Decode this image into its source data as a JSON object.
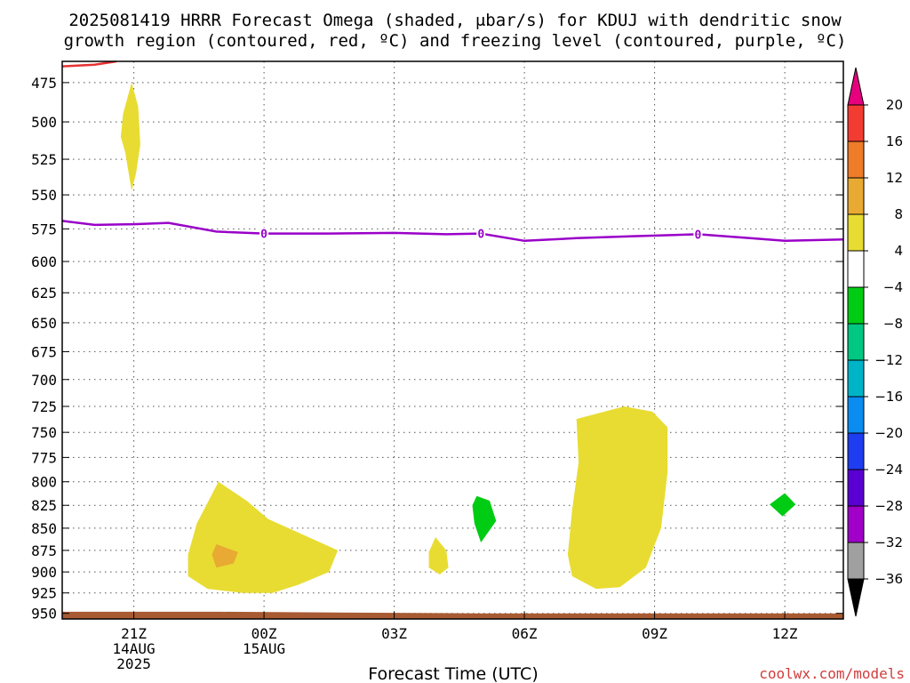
{
  "title_line1": "2025081419 HRRR Forecast Omega (shaded, μbar/s) for KDUJ with dendritic snow",
  "title_line2": "growth region (contoured, red, ºC) and freezing level (contoured, purple, ºC)",
  "credit": "coolwx.com/models",
  "chart_data": {
    "type": "contour",
    "xlabel": "Forecast Time (UTC)",
    "ylabel": "",
    "x_range_hours_from_21Z": [
      -1.65,
      16.35
    ],
    "y_range_hPa": [
      462,
      957
    ],
    "y_scale": "log-pressure, inverted",
    "grid": true,
    "x_ticks": [
      {
        "hour": 0,
        "lines": [
          "21Z",
          "14AUG",
          "2025"
        ]
      },
      {
        "hour": 3,
        "lines": [
          "00Z",
          "15AUG"
        ]
      },
      {
        "hour": 6,
        "lines": [
          "03Z"
        ]
      },
      {
        "hour": 9,
        "lines": [
          "06Z"
        ]
      },
      {
        "hour": 12,
        "lines": [
          "09Z"
        ]
      },
      {
        "hour": 15,
        "lines": [
          "12Z"
        ]
      }
    ],
    "y_ticks": [
      475,
      500,
      525,
      550,
      575,
      600,
      625,
      650,
      675,
      700,
      725,
      750,
      775,
      800,
      825,
      850,
      875,
      900,
      925,
      950
    ],
    "freezing_level": {
      "label": "0",
      "label_hours": [
        3,
        8,
        13
      ],
      "points": [
        [
          -1.65,
          569
        ],
        [
          -0.9,
          572
        ],
        [
          0,
          571.5
        ],
        [
          0.8,
          570.5
        ],
        [
          1.9,
          577
        ],
        [
          3,
          578.5
        ],
        [
          4.5,
          578.5
        ],
        [
          6,
          578
        ],
        [
          7.2,
          579
        ],
        [
          8,
          578.5
        ],
        [
          9,
          584
        ],
        [
          10.2,
          582
        ],
        [
          11.5,
          580.5
        ],
        [
          13,
          579
        ],
        [
          14.2,
          582
        ],
        [
          15,
          584
        ],
        [
          16.35,
          583
        ]
      ]
    },
    "dendritic_zone": {
      "points": [
        [
          -1.65,
          465
        ],
        [
          -0.9,
          464
        ],
        [
          -0.4,
          462
        ]
      ]
    },
    "terrain_top_hPa": [
      [
        -1.65,
        948
      ],
      [
        2,
        948
      ],
      [
        8,
        950
      ],
      [
        16.35,
        950
      ]
    ],
    "colorbar": {
      "tick_values": [
        20,
        16,
        12,
        8,
        4,
        -4,
        -8,
        -12,
        -16,
        -20,
        -24,
        -28,
        -32,
        -36
      ],
      "colors": {
        "over": "#e6007e",
        "16_20": "#f23c32",
        "12_16": "#ee7c28",
        "8_12": "#e8aa32",
        "4_8": "#e8dc32",
        "neutral": "#ffffff",
        "m8_m4": "#00cc14",
        "m12_m8": "#00c882",
        "m16_m12": "#00b4c8",
        "m20_m16": "#0a8cf0",
        "m24_m20": "#1e3cf0",
        "m28_m24": "#5a00d2",
        "m32_m28": "#a000c8",
        "m36_m32": "#a0a0a0",
        "under": "#000000"
      }
    },
    "omega_regions": [
      {
        "range": "4 to 8",
        "color": "#e8dc32",
        "points": [
          [
            -0.05,
            475
          ],
          [
            0.1,
            490
          ],
          [
            0.15,
            515
          ],
          [
            0.05,
            535
          ],
          [
            -0.05,
            547
          ],
          [
            -0.2,
            520
          ],
          [
            -0.3,
            510
          ],
          [
            -0.25,
            495
          ]
        ]
      },
      {
        "range": "4 to 8",
        "color": "#e8dc32",
        "points": [
          [
            1.95,
            800
          ],
          [
            2.6,
            820
          ],
          [
            3.1,
            840
          ],
          [
            3.8,
            855
          ],
          [
            4.7,
            875
          ],
          [
            4.5,
            900
          ],
          [
            3.8,
            915
          ],
          [
            3.2,
            925
          ],
          [
            2.5,
            925
          ],
          [
            1.7,
            920
          ],
          [
            1.25,
            905
          ],
          [
            1.25,
            880
          ],
          [
            1.45,
            845
          ]
        ]
      },
      {
        "range": "8 to 12",
        "color": "#e8aa32",
        "points": [
          [
            1.9,
            868
          ],
          [
            2.4,
            877
          ],
          [
            2.3,
            890
          ],
          [
            1.9,
            895
          ],
          [
            1.8,
            880
          ]
        ]
      },
      {
        "range": "4 to 8",
        "color": "#e8dc32",
        "points": [
          [
            6.95,
            860
          ],
          [
            7.2,
            875
          ],
          [
            7.25,
            895
          ],
          [
            7.05,
            903
          ],
          [
            6.8,
            895
          ],
          [
            6.8,
            877
          ]
        ]
      },
      {
        "range": "-4 to -8",
        "color": "#00cc14",
        "points": [
          [
            7.9,
            815
          ],
          [
            8.2,
            820
          ],
          [
            8.35,
            842
          ],
          [
            8.0,
            866
          ],
          [
            7.85,
            845
          ],
          [
            7.8,
            825
          ]
        ]
      },
      {
        "range": "4 to 8",
        "color": "#e8dc32",
        "points": [
          [
            10.2,
            737
          ],
          [
            11.3,
            725
          ],
          [
            11.95,
            730
          ],
          [
            12.3,
            745
          ],
          [
            12.3,
            790
          ],
          [
            12.15,
            850
          ],
          [
            11.8,
            895
          ],
          [
            11.2,
            918
          ],
          [
            10.65,
            920
          ],
          [
            10.1,
            905
          ],
          [
            10.0,
            880
          ],
          [
            10.1,
            830
          ],
          [
            10.25,
            780
          ]
        ]
      },
      {
        "range": "-4 to -8",
        "color": "#00cc14",
        "points": [
          [
            15.0,
            812
          ],
          [
            15.25,
            824
          ],
          [
            14.95,
            837
          ],
          [
            14.65,
            824
          ]
        ]
      }
    ]
  }
}
